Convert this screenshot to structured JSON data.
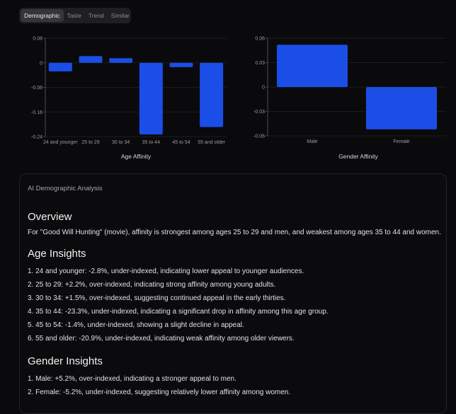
{
  "tabs": [
    {
      "label": "Demographic",
      "active": true
    },
    {
      "label": "Taste",
      "active": false
    },
    {
      "label": "Trend",
      "active": false
    },
    {
      "label": "Similar",
      "active": false
    }
  ],
  "colors": {
    "bar": "#1a4ee6",
    "background": "#0a0a0c",
    "axis": "#4a4c52"
  },
  "chart_data": [
    {
      "type": "bar",
      "title": "Age Affinity",
      "xlabel": "Age Affinity",
      "ylabel": "",
      "categories": [
        "24 and younger",
        "25 to 29",
        "30 to 34",
        "35 to 44",
        "45 to 54",
        "55 and older"
      ],
      "values": [
        -0.028,
        0.022,
        0.015,
        -0.233,
        -0.014,
        -0.209
      ],
      "yticks": [
        "0.08",
        "0",
        "-0.08",
        "-0.16",
        "-0.24"
      ],
      "ylim": [
        -0.24,
        0.08
      ],
      "grid": true,
      "legend": "none"
    },
    {
      "type": "bar",
      "title": "Gender Affinity",
      "xlabel": "Gender Affinity",
      "ylabel": "",
      "categories": [
        "Male",
        "Female"
      ],
      "values": [
        0.052,
        -0.052
      ],
      "yticks": [
        "0.06",
        "0.03",
        "0",
        "-0.03",
        "-0.06"
      ],
      "ylim": [
        -0.06,
        0.06
      ],
      "grid": true,
      "legend": "none"
    }
  ],
  "charts": {
    "age": {
      "title": "Age Affinity",
      "yticks": [
        "0.08",
        "0",
        "-0.08",
        "-0.16",
        "-0.24"
      ],
      "labels": [
        "24 and younger",
        "25 to 29",
        "30 to 34",
        "35 to 44",
        "45 to 54",
        "55 and older"
      ]
    },
    "gender": {
      "title": "Gender Affinity",
      "yticks": [
        "0.06",
        "0.03",
        "0",
        "-0.03",
        "-0.06"
      ],
      "labels": [
        "Male",
        "Female"
      ]
    }
  },
  "analysis": {
    "label": "AI Demographic Analysis",
    "overview": {
      "heading": "Overview",
      "text": "For \"Good Will Hunting\" (movie), affinity is strongest among ages 25 to 29 and men, and weakest among ages 35 to 44 and women."
    },
    "age": {
      "heading": "Age Insights",
      "items": [
        "1. 24 and younger: -2.8%, under-indexed, indicating lower appeal to younger audiences.",
        "2. 25 to 29: +2.2%, over-indexed, indicating strong affinity among young adults.",
        "3. 30 to 34: +1.5%, over-indexed, suggesting continued appeal in the early thirties.",
        "4. 35 to 44: -23.3%, under-indexed, indicating a significant drop in affinity among this age group.",
        "5. 45 to 54: -1.4%, under-indexed, showing a slight decline in appeal.",
        "6. 55 and older: -20.9%, under-indexed, indicating weak affinity among older viewers."
      ]
    },
    "gender": {
      "heading": "Gender Insights",
      "items": [
        "1. Male: +5.2%, over-indexed, indicating a stronger appeal to men.",
        "2. Female: -5.2%, under-indexed, suggesting relatively lower affinity among women."
      ]
    }
  }
}
